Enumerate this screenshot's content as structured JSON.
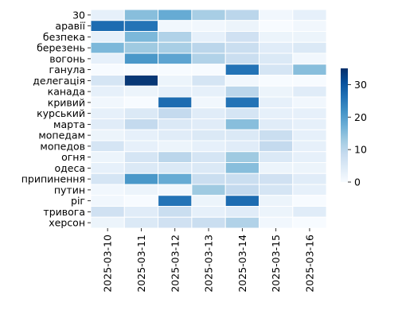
{
  "chart_data": {
    "type": "heatmap",
    "title": "",
    "xlabel": "",
    "ylabel": "",
    "x": [
      "2025-03-10",
      "2025-03-11",
      "2025-03-12",
      "2025-03-13",
      "2025-03-14",
      "2025-03-15",
      "2025-03-16"
    ],
    "y": [
      "30",
      "аравії",
      "безпека",
      "березень",
      "вогонь",
      "ганула",
      "делегація",
      "канада",
      "кривий",
      "курський",
      "марта",
      "мопедам",
      "мопедов",
      "огня",
      "одеса",
      "припинення",
      "путин",
      "ріг",
      "тривога",
      "херсон"
    ],
    "values": [
      [
        3,
        15,
        18,
        12,
        10,
        1,
        3
      ],
      [
        27,
        26,
        1,
        1,
        2,
        0,
        1
      ],
      [
        3,
        16,
        11,
        3,
        7,
        2,
        2
      ],
      [
        16,
        13,
        12,
        10,
        8,
        4,
        5
      ],
      [
        3,
        21,
        19,
        11,
        8,
        5,
        1
      ],
      [
        0,
        0,
        0,
        0,
        26,
        6,
        15
      ],
      [
        6,
        34,
        2,
        6,
        1,
        0,
        0
      ],
      [
        3,
        2,
        3,
        3,
        10,
        2,
        4
      ],
      [
        1,
        0,
        27,
        1,
        26,
        3,
        1
      ],
      [
        3,
        5,
        9,
        4,
        6,
        3,
        3
      ],
      [
        4,
        9,
        5,
        4,
        15,
        4,
        3
      ],
      [
        2,
        3,
        4,
        5,
        5,
        8,
        3
      ],
      [
        6,
        3,
        2,
        3,
        4,
        9,
        3
      ],
      [
        2,
        6,
        10,
        6,
        13,
        5,
        3
      ],
      [
        3,
        5,
        5,
        5,
        15,
        2,
        2
      ],
      [
        6,
        21,
        18,
        8,
        8,
        7,
        4
      ],
      [
        1,
        2,
        1,
        13,
        9,
        6,
        3
      ],
      [
        1,
        0,
        26,
        2,
        27,
        2,
        0
      ],
      [
        7,
        4,
        8,
        3,
        4,
        2,
        4
      ],
      [
        2,
        5,
        7,
        8,
        11,
        1,
        0
      ]
    ],
    "colorbar": {
      "min": 0,
      "max": 35,
      "ticks": [
        0,
        10,
        20,
        30
      ]
    },
    "colormap": "Blues",
    "grid": false,
    "legend": "colorbar-right"
  }
}
